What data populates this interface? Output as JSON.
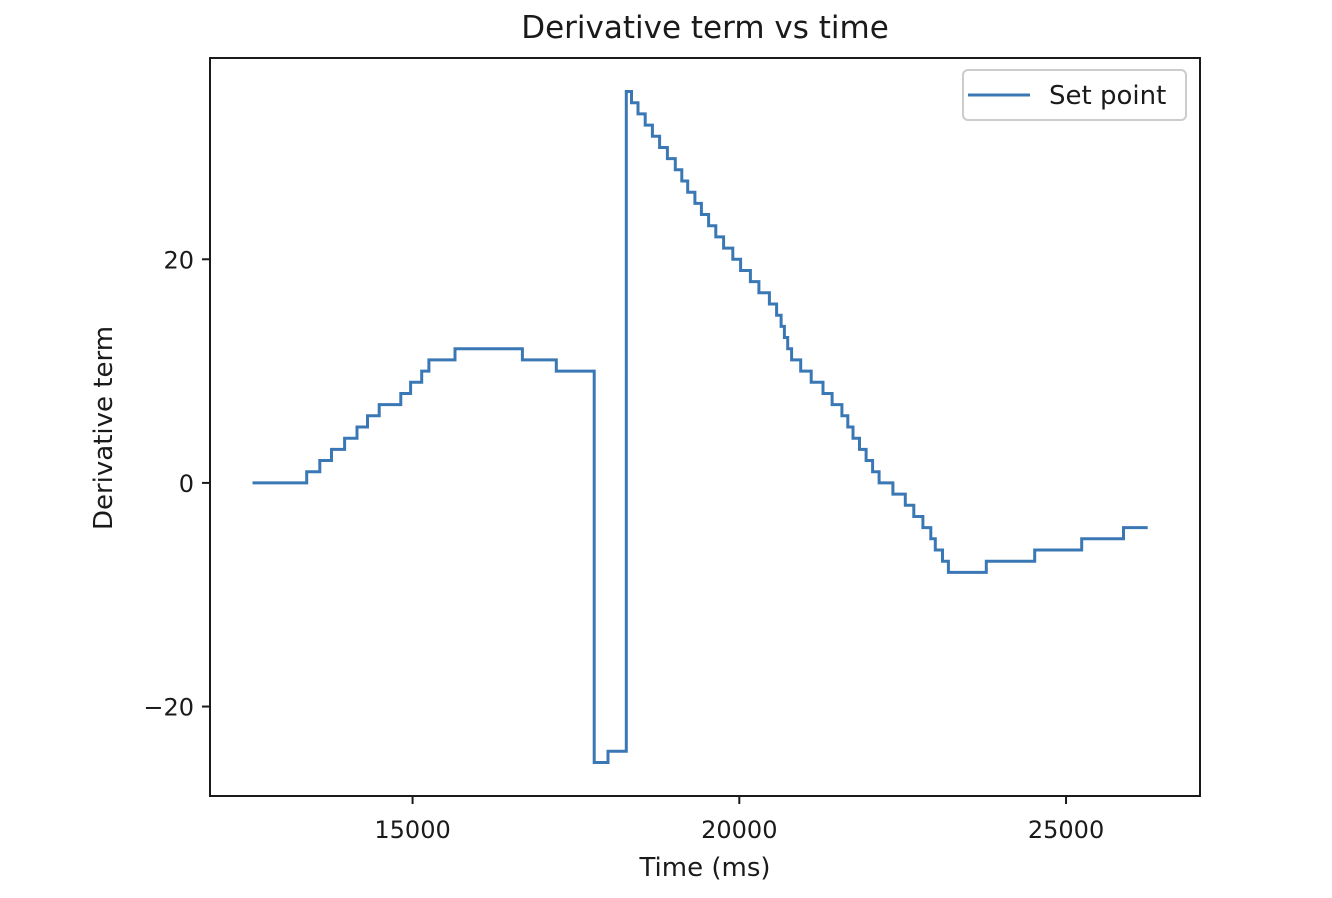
{
  "chart_data": {
    "type": "line",
    "title": "Derivative term vs time",
    "xlabel": "Time (ms)",
    "ylabel": "Derivative term",
    "xlim": [
      11900,
      27050
    ],
    "ylim": [
      -28,
      38
    ],
    "xticks": [
      15000,
      20000,
      25000
    ],
    "yticks": [
      -20,
      0,
      20
    ],
    "grid": false,
    "legend": {
      "position": "top-right"
    },
    "colors": {
      "line": "#3a78b5",
      "axes": "#1a1a1a",
      "legend_border": "#cccccc"
    },
    "series": [
      {
        "name": "Set point",
        "step": true,
        "points": [
          [
            12550,
            0
          ],
          [
            13380,
            1
          ],
          [
            13580,
            2
          ],
          [
            13760,
            3
          ],
          [
            13960,
            4
          ],
          [
            14150,
            5
          ],
          [
            14310,
            6
          ],
          [
            14490,
            7
          ],
          [
            14820,
            8
          ],
          [
            14970,
            9
          ],
          [
            15140,
            10
          ],
          [
            15250,
            11
          ],
          [
            15650,
            12
          ],
          [
            16680,
            11
          ],
          [
            17200,
            10
          ],
          [
            17780,
            -25
          ],
          [
            17990,
            -24
          ],
          [
            18270,
            35
          ],
          [
            18350,
            34
          ],
          [
            18450,
            33
          ],
          [
            18560,
            32
          ],
          [
            18670,
            31
          ],
          [
            18780,
            30
          ],
          [
            18900,
            29
          ],
          [
            19020,
            28
          ],
          [
            19120,
            27
          ],
          [
            19210,
            26
          ],
          [
            19320,
            25
          ],
          [
            19420,
            24
          ],
          [
            19530,
            23
          ],
          [
            19640,
            22
          ],
          [
            19760,
            21
          ],
          [
            19900,
            20
          ],
          [
            20020,
            19
          ],
          [
            20170,
            18
          ],
          [
            20300,
            17
          ],
          [
            20460,
            16
          ],
          [
            20570,
            15
          ],
          [
            20640,
            14
          ],
          [
            20690,
            13
          ],
          [
            20740,
            12
          ],
          [
            20800,
            11
          ],
          [
            20940,
            10
          ],
          [
            21100,
            9
          ],
          [
            21280,
            8
          ],
          [
            21420,
            7
          ],
          [
            21570,
            6
          ],
          [
            21660,
            5
          ],
          [
            21740,
            4
          ],
          [
            21840,
            3
          ],
          [
            21940,
            2
          ],
          [
            22040,
            1
          ],
          [
            22140,
            0
          ],
          [
            22350,
            -1
          ],
          [
            22540,
            -2
          ],
          [
            22670,
            -3
          ],
          [
            22810,
            -4
          ],
          [
            22930,
            -5
          ],
          [
            23000,
            -6
          ],
          [
            23110,
            -7
          ],
          [
            23200,
            -8
          ],
          [
            23780,
            -7
          ],
          [
            24520,
            -6
          ],
          [
            25240,
            -5
          ],
          [
            25880,
            -4
          ],
          [
            26250,
            -4
          ]
        ]
      }
    ]
  }
}
